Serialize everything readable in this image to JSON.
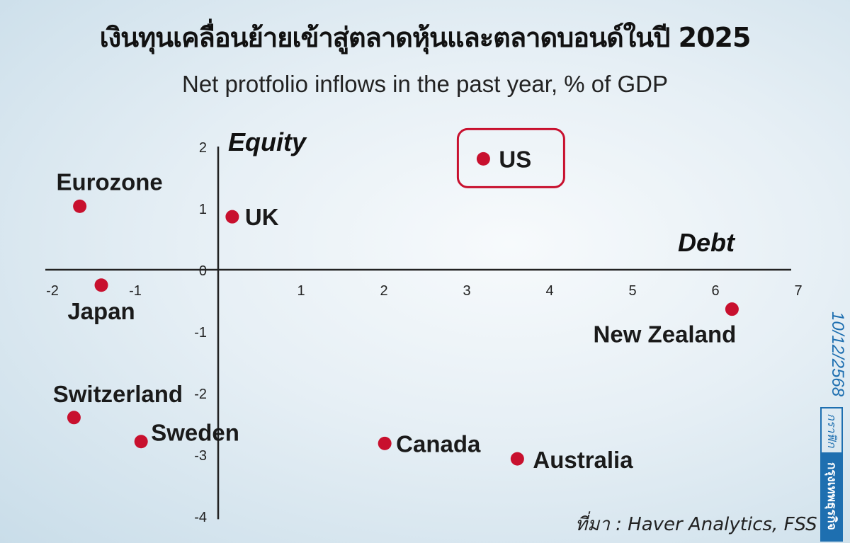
{
  "title": "เงินทุนเคลื่อนย้ายเข้าสู่ตลาดหุ้นและตลาดบอนด์ในปี 2025",
  "subtitle": "Net protfolio inflows in the past year, % of GDP",
  "source": "ที่มา : Haver Analytics, FSS",
  "date": "10/12/2568",
  "brand": {
    "top": "กราฟิก",
    "bottom": "กรุงเทพธุรกิจ"
  },
  "chart_data": {
    "type": "scatter",
    "xlabel": "Debt",
    "ylabel": "Equity",
    "xlim": [
      -2,
      7
    ],
    "ylim": [
      -4,
      2
    ],
    "xticks": [
      "-2",
      "-1",
      "0",
      "1",
      "2",
      "3",
      "4",
      "5",
      "6",
      "7"
    ],
    "yticks": [
      "2",
      "1",
      "0",
      "-1",
      "-2",
      "-3",
      "-4"
    ],
    "grid": false,
    "point_color": "#c8102e",
    "highlight": "US",
    "points": [
      {
        "name": "US",
        "x": 3.2,
        "y": 1.8
      },
      {
        "name": "UK",
        "x": 0.17,
        "y": 0.86
      },
      {
        "name": "Eurozone",
        "x": -1.67,
        "y": 1.03
      },
      {
        "name": "Japan",
        "x": -1.41,
        "y": -0.25
      },
      {
        "name": "Switzerland",
        "x": -1.74,
        "y": -2.4
      },
      {
        "name": "Sweden",
        "x": -0.93,
        "y": -2.79
      },
      {
        "name": "Canada",
        "x": 2.01,
        "y": -2.82
      },
      {
        "name": "Australia",
        "x": 3.61,
        "y": -3.07
      },
      {
        "name": "New Zealand",
        "x": 6.2,
        "y": -0.64
      }
    ]
  }
}
